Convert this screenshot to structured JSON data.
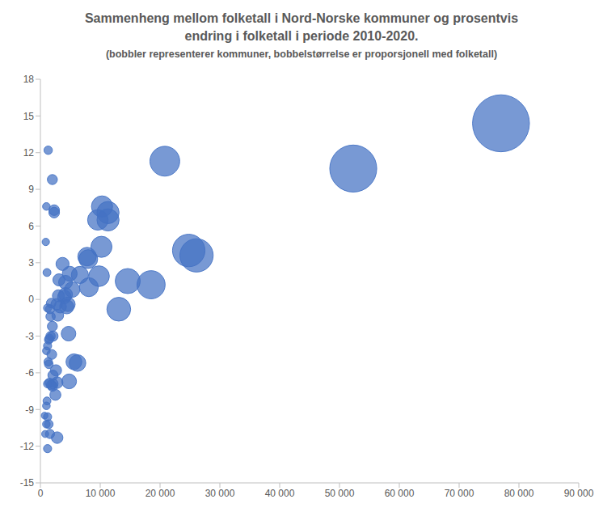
{
  "chart_data": {
    "type": "bubble",
    "title": "Sammenheng mellom folketall i Nord-Norske kommuner og prosentvis\nendring i folketall i periode 2010-2020.",
    "subtitle": "(bobbler representerer kommuner, bobbelstørrelse er proporsjonell med folketall)",
    "x": [
      77000,
      52300,
      20800,
      24800,
      26100,
      18500,
      14600,
      13100,
      10300,
      11300,
      11300,
      9600,
      10200,
      7800,
      8000,
      9800,
      8100,
      6600,
      5600,
      6200,
      4800,
      4700,
      5300,
      4900,
      4200,
      4600,
      4400,
      4200,
      4000,
      3700,
      3100,
      3000,
      3300,
      2900,
      2700,
      2600,
      2800,
      2500,
      2100,
      2000,
      2100,
      2800,
      2300,
      2300,
      2000,
      1300,
      1000,
      900,
      1100,
      1800,
      1600,
      1700,
      1200,
      2000,
      2100,
      1700,
      1400,
      1500,
      1200,
      1000,
      1900,
      1300,
      1400,
      1500,
      1200,
      1800,
      1100,
      1000,
      700,
      1200,
      1000,
      1400,
      1600,
      800,
      1200
    ],
    "values": [
      14.4,
      10.7,
      11.3,
      4.0,
      3.6,
      1.2,
      1.5,
      -0.8,
      7.6,
      7.1,
      6.5,
      6.5,
      4.3,
      3.5,
      3.3,
      1.9,
      1.0,
      2.0,
      -5.1,
      -5.2,
      -6.7,
      -2.8,
      0.8,
      2.1,
      1.4,
      -0.4,
      -0.6,
      0.4,
      0.2,
      2.9,
      1.6,
      0.3,
      -0.6,
      -1.3,
      -0.4,
      -5.8,
      -6.8,
      -7.8,
      -6.9,
      -7.1,
      -6.2,
      -11.3,
      7.3,
      7.1,
      9.8,
      12.2,
      7.6,
      4.7,
      2.2,
      -0.3,
      -0.8,
      -1.4,
      -0.7,
      -2.2,
      -3.0,
      -3.0,
      -3.3,
      -3.2,
      -3.8,
      -4.2,
      -4.5,
      -5.1,
      -5.3,
      -6.8,
      -6.9,
      -7.0,
      -8.3,
      -8.7,
      -9.5,
      -9.6,
      -10.2,
      -10.2,
      -11.0,
      -11.0,
      -12.2
    ],
    "size": [
      77000,
      52300,
      20800,
      24800,
      26100,
      18500,
      14600,
      13100,
      10300,
      11300,
      11300,
      9600,
      10200,
      7800,
      8000,
      9800,
      8100,
      6600,
      5600,
      6200,
      4800,
      4700,
      5300,
      4900,
      4200,
      4600,
      4400,
      4200,
      4000,
      3700,
      3100,
      3000,
      3300,
      2900,
      2700,
      2600,
      2800,
      2500,
      2100,
      2000,
      2100,
      2800,
      2300,
      2300,
      2000,
      1300,
      1000,
      900,
      1100,
      1800,
      1600,
      1700,
      1200,
      2000,
      2100,
      1700,
      1400,
      1500,
      1200,
      1000,
      1900,
      1300,
      1400,
      1500,
      1200,
      1800,
      1100,
      1000,
      700,
      1200,
      1000,
      1400,
      1600,
      800,
      1200
    ],
    "color": "#4472c4",
    "xlim": [
      0,
      90000
    ],
    "xticks": [
      0,
      {
        "value": 10000,
        "label": "10 000"
      },
      {
        "value": 20000,
        "label": "20 000"
      },
      {
        "value": 30000,
        "label": "30 000"
      },
      {
        "value": 40000,
        "label": "40 000"
      },
      {
        "value": 50000,
        "label": "50 000"
      },
      {
        "value": 60000,
        "label": "60 000"
      },
      {
        "value": 70000,
        "label": "70 000"
      },
      {
        "value": 80000,
        "label": "80 000"
      },
      {
        "value": 90000,
        "label": "90 000"
      }
    ],
    "ylim": [
      -15,
      18
    ],
    "yticks": [
      -15,
      -12,
      -9,
      -6,
      -3,
      0,
      3,
      6,
      9,
      12,
      15,
      18
    ],
    "grid": false
  }
}
